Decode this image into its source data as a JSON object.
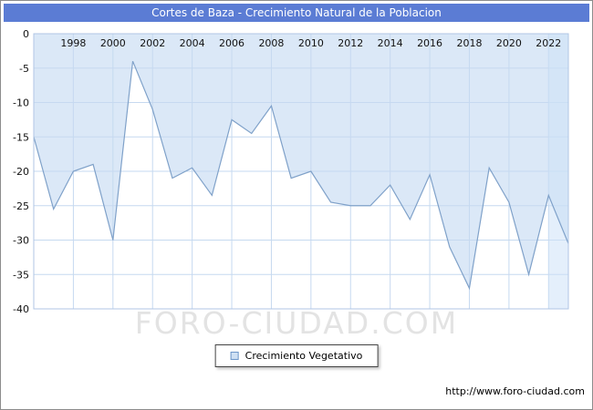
{
  "title": "Cortes de Baza - Crecimiento Natural de la Poblacion",
  "watermark": "FORO-CIUDAD.COM",
  "footer_url": "http://www.foro-ciudad.com",
  "legend": {
    "label": "Crecimiento Vegetativo"
  },
  "colors": {
    "header_bg": "#5b7cd4",
    "line": "#7fa1c9",
    "area": "#dbe8f7",
    "grid": "#c6d9f0",
    "plot_border": "#b0c6e4",
    "highlight": "rgba(205,225,248,0.55)",
    "legend_marker_fill": "#cfe0f3",
    "legend_marker_border": "#6d96c9"
  },
  "chart_data": {
    "type": "area",
    "title": "Cortes de Baza - Crecimiento Natural de la Poblacion",
    "series_name": "Crecimiento Vegetativo",
    "x": [
      1996,
      1997,
      1998,
      1999,
      2000,
      2001,
      2002,
      2003,
      2004,
      2005,
      2006,
      2007,
      2008,
      2009,
      2010,
      2011,
      2012,
      2013,
      2014,
      2015,
      2016,
      2017,
      2018,
      2019,
      2020,
      2021,
      2022,
      2023
    ],
    "values": [
      -15,
      -25.5,
      -20,
      -19,
      -30,
      -4,
      -11,
      -21,
      -19.5,
      -23.5,
      -12.5,
      -14.5,
      -10.5,
      -21,
      -20,
      -24.5,
      -25,
      -25,
      -22,
      -27,
      -20.5,
      -31,
      -37,
      -19.5,
      -24.5,
      -35,
      -23.5,
      -30.5
    ],
    "x_ticks": [
      1998,
      2000,
      2002,
      2004,
      2006,
      2008,
      2010,
      2012,
      2014,
      2016,
      2018,
      2020,
      2022
    ],
    "y_ticks": [
      0,
      -5,
      -10,
      -15,
      -20,
      -25,
      -30,
      -35,
      -40
    ],
    "xlim": [
      1996,
      2023
    ],
    "ylim": [
      -40,
      0
    ],
    "grid": true,
    "legend_position": "bottom",
    "highlight_band": {
      "from": 2022,
      "to": 2023
    }
  }
}
